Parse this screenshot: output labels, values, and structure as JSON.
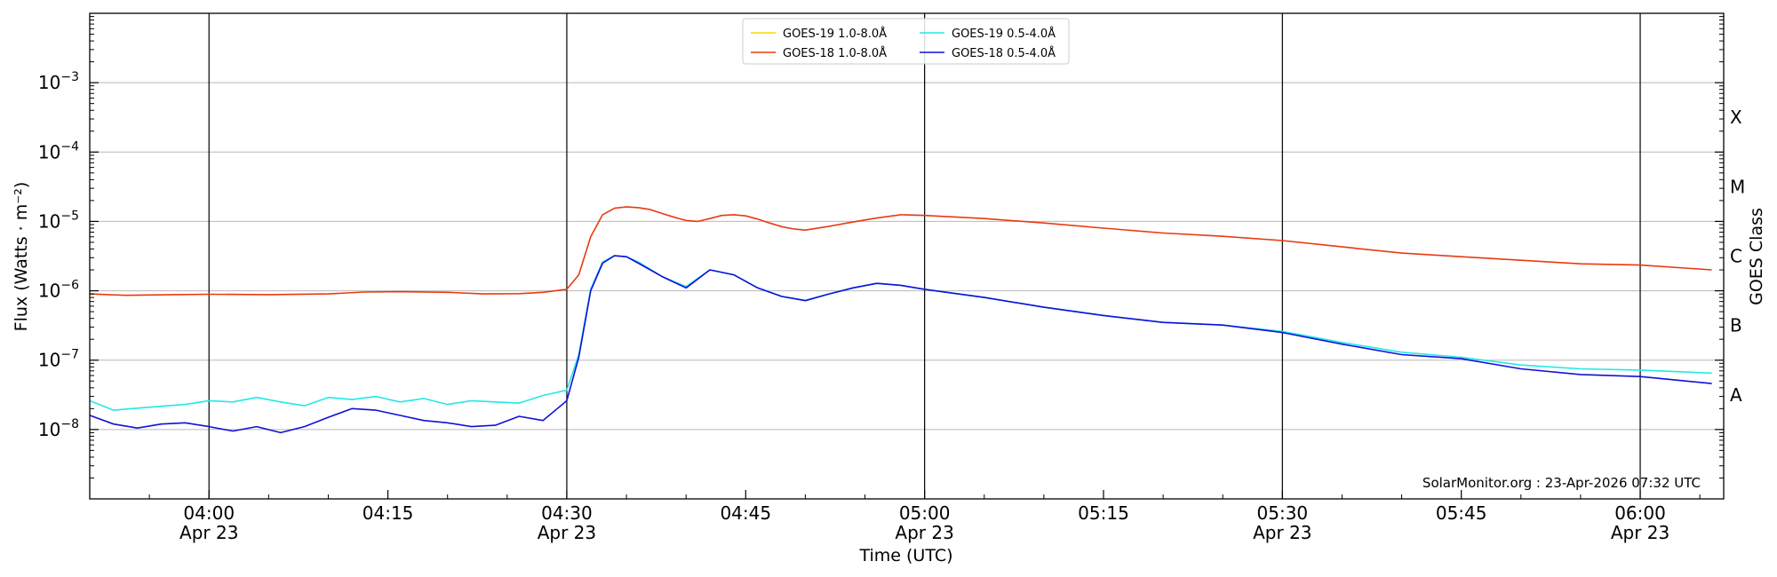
{
  "chart_data": {
    "type": "line",
    "title": "",
    "xlabel": "Time (UTC)",
    "ylabel": "Flux (Watts · m⁻²)",
    "y2label": "GOES Class",
    "yscale": "log",
    "ylim": [
      1e-09,
      0.01
    ],
    "xlim": [
      "03:50",
      "06:07"
    ],
    "grid": "horizontal",
    "legend_position": "top-center",
    "credit": "SolarMonitor.org : 23-Apr-2026 07:32 UTC",
    "x_ticks": [
      {
        "time": "04:00",
        "label": "04:00",
        "date": "Apr 23"
      },
      {
        "time": "04:15",
        "label": "04:15",
        "date": ""
      },
      {
        "time": "04:30",
        "label": "04:30",
        "date": "Apr 23"
      },
      {
        "time": "04:45",
        "label": "04:45",
        "date": ""
      },
      {
        "time": "05:00",
        "label": "05:00",
        "date": "Apr 23"
      },
      {
        "time": "05:15",
        "label": "05:15",
        "date": ""
      },
      {
        "time": "05:30",
        "label": "05:30",
        "date": "Apr 23"
      },
      {
        "time": "05:45",
        "label": "05:45",
        "date": ""
      },
      {
        "time": "06:00",
        "label": "06:00",
        "date": "Apr 23"
      }
    ],
    "vertical_lines": [
      "04:00",
      "04:30",
      "05:00",
      "05:30",
      "06:00"
    ],
    "y_ticks": [
      {
        "value": 1e-08,
        "base": "10",
        "exp": "−8"
      },
      {
        "value": 1e-07,
        "base": "10",
        "exp": "−7"
      },
      {
        "value": 1e-06,
        "base": "10",
        "exp": "−6"
      },
      {
        "value": 1e-05,
        "base": "10",
        "exp": "−5"
      },
      {
        "value": 0.0001,
        "base": "10",
        "exp": "−4"
      },
      {
        "value": 0.001,
        "base": "10",
        "exp": "−3"
      }
    ],
    "goes_classes": [
      {
        "label": "A",
        "value": 1e-08
      },
      {
        "label": "B",
        "value": 1e-07
      },
      {
        "label": "C",
        "value": 1e-06
      },
      {
        "label": "M",
        "value": 1e-05
      },
      {
        "label": "X",
        "value": 0.0001
      }
    ],
    "series": [
      {
        "name": "GOES-19 1.0-8.0Å",
        "color": "#ffd700",
        "x": [],
        "y": []
      },
      {
        "name": "GOES-18 1.0-8.0Å",
        "color": "#e83a10",
        "x": [
          "03:50",
          "03:53",
          "03:57",
          "04:00",
          "04:05",
          "04:10",
          "04:13",
          "04:16",
          "04:20",
          "04:23",
          "04:26",
          "04:28",
          "04:30",
          "04:31",
          "04:32",
          "04:33",
          "04:34",
          "04:35",
          "04:36",
          "04:37",
          "04:38",
          "04:39",
          "04:40",
          "04:41",
          "04:42",
          "04:43",
          "04:44",
          "04:45",
          "04:46",
          "04:47",
          "04:48",
          "04:49",
          "04:50",
          "04:52",
          "04:54",
          "04:56",
          "04:58",
          "05:00",
          "05:05",
          "05:10",
          "05:15",
          "05:20",
          "05:25",
          "05:30",
          "05:35",
          "05:40",
          "05:45",
          "05:50",
          "05:55",
          "06:00",
          "06:06"
        ],
        "y": [
          9e-07,
          8.6e-07,
          8.8e-07,
          8.9e-07,
          8.8e-07,
          9e-07,
          9.6e-07,
          9.7e-07,
          9.5e-07,
          9e-07,
          9.1e-07,
          9.5e-07,
          1.05e-06,
          1.7e-06,
          6e-06,
          1.25e-05,
          1.55e-05,
          1.62e-05,
          1.58e-05,
          1.48e-05,
          1.3e-05,
          1.15e-05,
          1.03e-05,
          1e-05,
          1.1e-05,
          1.22e-05,
          1.25e-05,
          1.2e-05,
          1.08e-05,
          9.5e-06,
          8.4e-06,
          7.8e-06,
          7.5e-06,
          8.5e-06,
          9.8e-06,
          1.12e-05,
          1.25e-05,
          1.22e-05,
          1.1e-05,
          9.5e-06,
          8e-06,
          6.8e-06,
          6.1e-06,
          5.3e-06,
          4.3e-06,
          3.5e-06,
          3.1e-06,
          2.75e-06,
          2.45e-06,
          2.35e-06,
          2e-06
        ]
      },
      {
        "name": "GOES-19 0.5-4.0Å",
        "color": "#22e8e8",
        "x": [
          "03:50",
          "03:52",
          "03:55",
          "03:58",
          "04:00",
          "04:02",
          "04:04",
          "04:06",
          "04:08",
          "04:10",
          "04:12",
          "04:14",
          "04:16",
          "04:18",
          "04:20",
          "04:22",
          "04:24",
          "04:26",
          "04:28",
          "04:30",
          "04:31",
          "04:32",
          "04:33",
          "04:34",
          "04:35",
          "04:36",
          "04:38",
          "04:40",
          "04:42",
          "04:44",
          "04:46",
          "04:48",
          "04:50",
          "04:52",
          "04:54",
          "04:56",
          "04:58",
          "05:00",
          "05:05",
          "05:10",
          "05:15",
          "05:20",
          "05:25",
          "05:30",
          "05:35",
          "05:40",
          "05:45",
          "05:50",
          "05:55",
          "06:00",
          "06:06"
        ],
        "y": [
          2.6e-08,
          1.9e-08,
          2.1e-08,
          2.3e-08,
          2.6e-08,
          2.5e-08,
          2.9e-08,
          2.5e-08,
          2.2e-08,
          2.9e-08,
          2.7e-08,
          3e-08,
          2.5e-08,
          2.8e-08,
          2.3e-08,
          2.6e-08,
          2.5e-08,
          2.4e-08,
          3.1e-08,
          3.7e-08,
          1.2e-07,
          1.05e-06,
          2.6e-06,
          3.2e-06,
          3.1e-06,
          2.6e-06,
          1.6e-06,
          1.15e-06,
          2e-06,
          1.7e-06,
          1.1e-06,
          8.3e-07,
          7.3e-07,
          9e-07,
          1.1e-06,
          1.28e-06,
          1.2e-06,
          1.05e-06,
          8e-07,
          5.8e-07,
          4.4e-07,
          3.5e-07,
          3.2e-07,
          2.6e-07,
          1.8e-07,
          1.3e-07,
          1.1e-07,
          8.5e-08,
          7.5e-08,
          7.2e-08,
          6.5e-08
        ]
      },
      {
        "name": "GOES-18 0.5-4.0Å",
        "color": "#1010d8",
        "x": [
          "03:50",
          "03:52",
          "03:54",
          "03:56",
          "03:58",
          "04:00",
          "04:02",
          "04:04",
          "04:06",
          "04:08",
          "04:10",
          "04:12",
          "04:14",
          "04:16",
          "04:18",
          "04:20",
          "04:22",
          "04:24",
          "04:26",
          "04:28",
          "04:30",
          "04:31",
          "04:32",
          "04:33",
          "04:34",
          "04:35",
          "04:36",
          "04:38",
          "04:40",
          "04:42",
          "04:44",
          "04:46",
          "04:48",
          "04:50",
          "04:52",
          "04:54",
          "04:56",
          "04:58",
          "05:00",
          "05:05",
          "05:10",
          "05:15",
          "05:20",
          "05:25",
          "05:30",
          "05:35",
          "05:40",
          "05:45",
          "05:50",
          "05:55",
          "06:00",
          "06:06"
        ],
        "y": [
          1.6e-08,
          1.2e-08,
          1.05e-08,
          1.2e-08,
          1.25e-08,
          1.1e-08,
          9.5e-09,
          1.1e-08,
          9e-09,
          1.1e-08,
          1.5e-08,
          2e-08,
          1.9e-08,
          1.6e-08,
          1.35e-08,
          1.25e-08,
          1.1e-08,
          1.15e-08,
          1.55e-08,
          1.35e-08,
          2.6e-08,
          1.1e-07,
          1e-06,
          2.5e-06,
          3.2e-06,
          3.1e-06,
          2.5e-06,
          1.6e-06,
          1.1e-06,
          2e-06,
          1.7e-06,
          1.1e-06,
          8.3e-07,
          7.2e-07,
          9e-07,
          1.1e-06,
          1.28e-06,
          1.2e-06,
          1.05e-06,
          8e-07,
          5.8e-07,
          4.4e-07,
          3.5e-07,
          3.2e-07,
          2.5e-07,
          1.7e-07,
          1.2e-07,
          1.05e-07,
          7.5e-08,
          6.2e-08,
          5.8e-08,
          4.6e-08
        ]
      }
    ]
  }
}
